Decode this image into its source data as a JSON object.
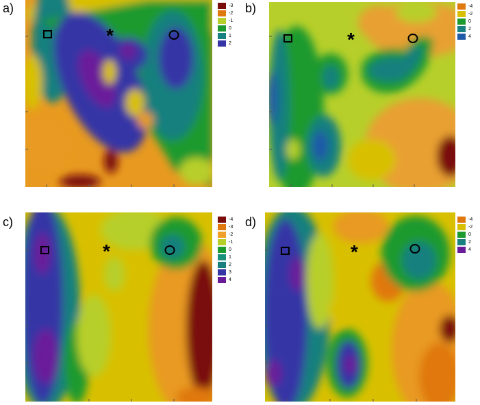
{
  "colors": {
    "dark_red": "#7a0c0c",
    "orange": "#e07810",
    "yellow": "#d8c000",
    "yellow_green": "#b7cf2a",
    "green": "#1c9a2e",
    "teal": "#18807e",
    "navy": "#3535a6",
    "purple": "#6a1b9a"
  },
  "chart_data": [
    {
      "type": "heatmap",
      "panel_label": "a)",
      "legend": [
        {
          "label": "-3",
          "color": "#7a0c0c"
        },
        {
          "label": "-2",
          "color": "#e07810"
        },
        {
          "label": "-1",
          "color": "#b7cf2a"
        },
        {
          "label": "0",
          "color": "#1c9a2e"
        },
        {
          "label": "1",
          "color": "#18807e"
        },
        {
          "label": "2",
          "color": "#3535a6"
        }
      ],
      "markers": {
        "square": "□",
        "star": "*",
        "circle": "○"
      }
    },
    {
      "type": "heatmap",
      "panel_label": "b)",
      "legend": [
        {
          "label": "-4",
          "color": "#e07810"
        },
        {
          "label": "-2",
          "color": "#d8c000"
        },
        {
          "label": "0",
          "color": "#1c9a2e"
        },
        {
          "label": "2",
          "color": "#18807e"
        },
        {
          "label": "4",
          "color": "#1f5aa8"
        }
      ],
      "markers": {
        "square": "□",
        "star": "*",
        "circle": "○"
      }
    },
    {
      "type": "heatmap",
      "panel_label": "c)",
      "legend": [
        {
          "label": "-4",
          "color": "#7a0c0c"
        },
        {
          "label": "-3",
          "color": "#e07810"
        },
        {
          "label": "-2",
          "color": "#f0a028"
        },
        {
          "label": "-1",
          "color": "#b7cf2a"
        },
        {
          "label": "0",
          "color": "#1c9a2e"
        },
        {
          "label": "1",
          "color": "#18907a"
        },
        {
          "label": "2",
          "color": "#18807e"
        },
        {
          "label": "3",
          "color": "#3535a6"
        },
        {
          "label": "4",
          "color": "#6a1b9a"
        }
      ],
      "markers": {
        "square": "□",
        "star": "*",
        "circle": "○"
      }
    },
    {
      "type": "heatmap",
      "panel_label": "d)",
      "legend": [
        {
          "label": "-4",
          "color": "#e07810"
        },
        {
          "label": "-2",
          "color": "#d8c000"
        },
        {
          "label": "0",
          "color": "#1c9a2e"
        },
        {
          "label": "2",
          "color": "#18807e"
        },
        {
          "label": "4",
          "color": "#6a1b9a"
        }
      ],
      "markers": {
        "square": "□",
        "star": "*",
        "circle": "○"
      }
    }
  ]
}
